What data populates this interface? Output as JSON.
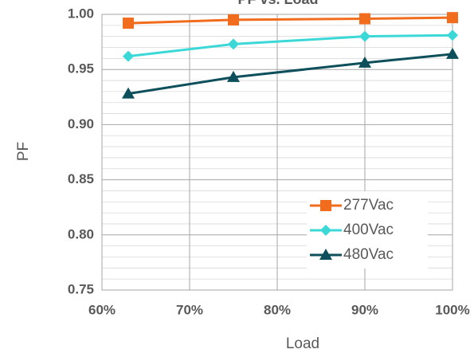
{
  "chart_data": {
    "type": "line",
    "title": "PF vs. Load",
    "x_label": "Load",
    "y_label": "PF",
    "x": [
      63,
      75,
      90,
      100
    ],
    "xlim": [
      60,
      100
    ],
    "xticks": [
      {
        "value": 60,
        "label": "60%"
      },
      {
        "value": 70,
        "label": "70%"
      },
      {
        "value": 80,
        "label": "80%"
      },
      {
        "value": 90,
        "label": "90%"
      },
      {
        "value": 100,
        "label": "100%"
      }
    ],
    "ylim": [
      0.75,
      1.0
    ],
    "yticks": [
      {
        "value": 0.75,
        "label": "0.75"
      },
      {
        "value": 0.8,
        "label": "0.80"
      },
      {
        "value": 0.85,
        "label": "0.85"
      },
      {
        "value": 0.9,
        "label": "0.90"
      },
      {
        "value": 0.95,
        "label": "0.95"
      },
      {
        "value": 1.0,
        "label": "1.00"
      }
    ],
    "yminor": [
      0.76,
      0.77,
      0.78,
      0.79,
      0.81,
      0.82,
      0.83,
      0.84,
      0.86,
      0.87,
      0.88,
      0.89,
      0.91,
      0.92,
      0.93,
      0.94,
      0.96,
      0.97,
      0.98,
      0.99
    ],
    "grid": true,
    "legend": "lower right",
    "series": [
      {
        "name": "277Vac",
        "color": "#f26c1e",
        "marker": "square",
        "values": [
          0.992,
          0.995,
          0.996,
          0.997
        ]
      },
      {
        "name": "400Vac",
        "color": "#3cd8d8",
        "marker": "diamond",
        "values": [
          0.962,
          0.973,
          0.98,
          0.981
        ]
      },
      {
        "name": "480Vac",
        "color": "#0d4f5a",
        "marker": "triangle",
        "values": [
          0.928,
          0.943,
          0.956,
          0.964
        ]
      }
    ]
  }
}
